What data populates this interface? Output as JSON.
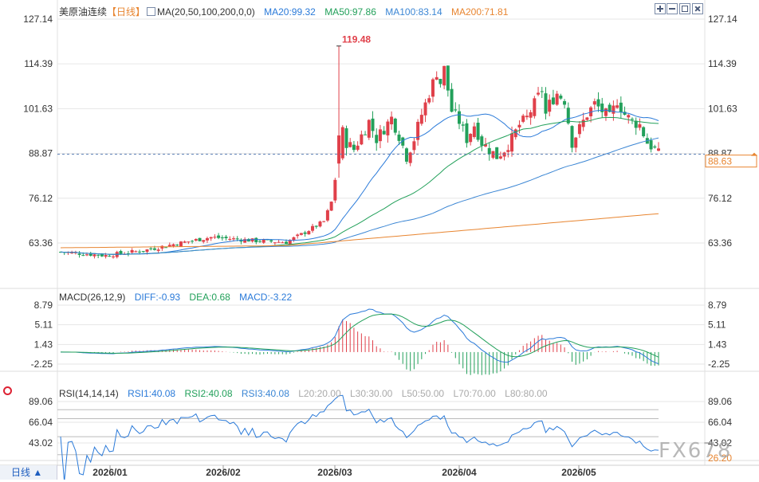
{
  "header": {
    "symbol_label": "美原油连续",
    "period_tag": "【日线】",
    "ma_label": "MA(20,50,100,200,0,0)",
    "ma_items": [
      {
        "text": "MA20:99.32",
        "color": "#2a7ad9"
      },
      {
        "text": "MA50:97.86",
        "color": "#22a05a"
      },
      {
        "text": "MA100:83.14",
        "color": "#3b86d4"
      },
      {
        "text": "MA200:71.81",
        "color": "#e88530"
      }
    ]
  },
  "macd_legend": {
    "label": "MACD(26,12,9)",
    "items": [
      {
        "text": "DIFF:-0.93",
        "color": "#2a7ad9"
      },
      {
        "text": "DEA:0.68",
        "color": "#22a05a"
      },
      {
        "text": "MACD:-3.22",
        "color": "#2a7ad9"
      }
    ]
  },
  "rsi_legend": {
    "label": "RSI(14,14,14)",
    "items": [
      {
        "text": "RSI1:40.08",
        "color": "#2a7ad9"
      },
      {
        "text": "RSI2:40.08",
        "color": "#22a05a"
      },
      {
        "text": "RSI3:40.08",
        "color": "#3b86d4"
      },
      {
        "text": "L20:20.00",
        "color": "#aaaaaa"
      },
      {
        "text": "L30:30.00",
        "color": "#aaaaaa"
      },
      {
        "text": "L50:50.00",
        "color": "#aaaaaa"
      },
      {
        "text": "L70:70.00",
        "color": "#aaaaaa"
      },
      {
        "text": "L80:80.00",
        "color": "#aaaaaa"
      }
    ]
  },
  "period_button": "日线 ▲",
  "watermark": "FX678",
  "colors": {
    "up": "#e0404a",
    "down": "#22a05a",
    "grid": "#e6e6e6"
  },
  "chart_data": [
    {
      "type": "candlestick",
      "y_ticks_left": [
        "127.14",
        "114.39",
        "101.63",
        "88.87",
        "76.12",
        "63.36"
      ],
      "y_ticks_right": [
        "127.14",
        "114.39",
        "101.63",
        "88.87",
        "76.12",
        "63.36"
      ],
      "ylim": [
        57,
        127.14
      ],
      "x_ticks": [
        "2026/01",
        "2026/02",
        "2026/03",
        "2026/04",
        "2026/05"
      ],
      "high_annotation": "119.48",
      "high_value": 119.48,
      "last_price": 88.63,
      "last_price_label": "88.63",
      "moving_averages": {
        "MA20": 99.32,
        "MA50": 97.86,
        "MA100": 83.14,
        "MA200": 71.81
      }
    },
    {
      "type": "macd",
      "y_ticks_left": [
        "8.79",
        "5.11",
        "1.43",
        "-2.25"
      ],
      "y_ticks_right": [
        "8.79",
        "5.11",
        "1.43",
        "-2.25"
      ],
      "ylim": [
        -3.5,
        9.6
      ],
      "DIFF": -0.93,
      "DEA": 0.68,
      "MACD": -3.22
    },
    {
      "type": "rsi",
      "y_ticks_left": [
        "89.06",
        "66.04",
        "43.02"
      ],
      "y_ticks_right": [
        "89.06",
        "66.04",
        "43.02",
        "26.20"
      ],
      "ylim": [
        20,
        98
      ],
      "RSI1": 40.08,
      "RSI2": 40.08,
      "RSI3": 40.08,
      "levels": [
        20,
        30,
        50,
        70,
        80
      ]
    }
  ]
}
